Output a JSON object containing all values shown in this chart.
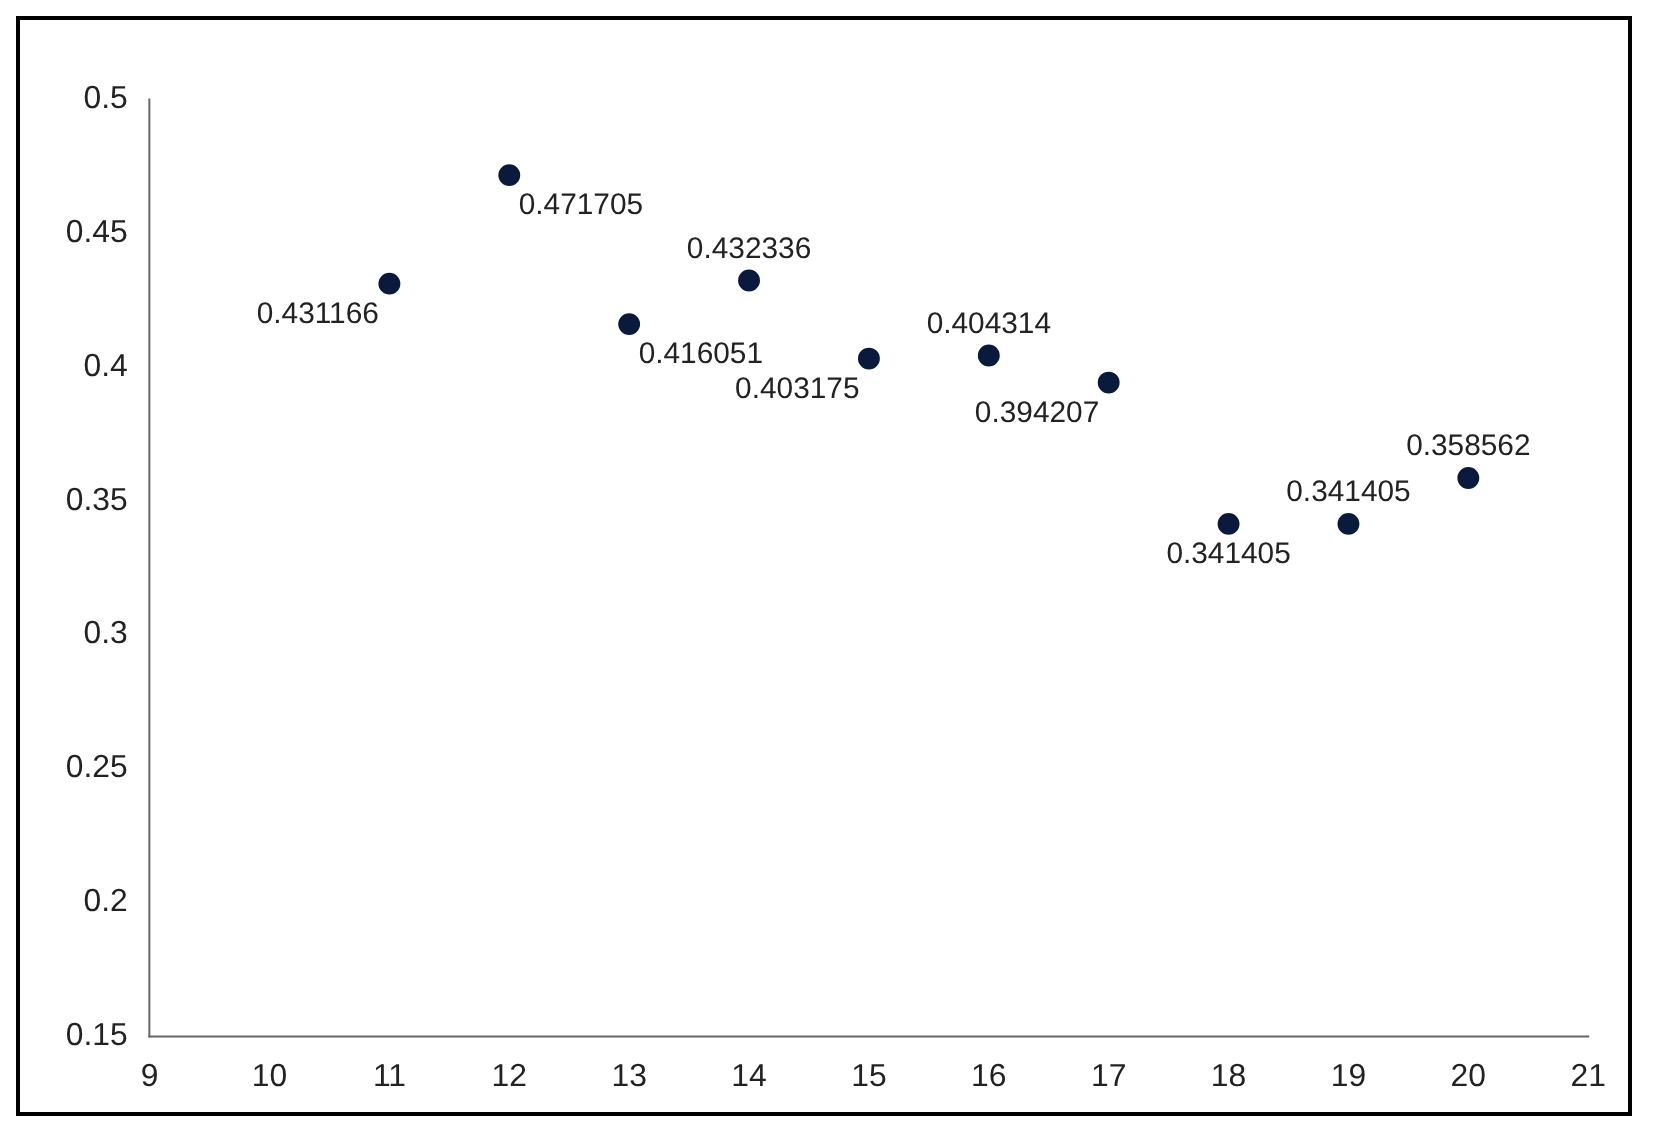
{
  "chart_data": {
    "type": "scatter",
    "x": [
      11,
      12,
      13,
      14,
      15,
      16,
      17,
      18,
      19,
      20
    ],
    "values": [
      0.431166,
      0.471705,
      0.416051,
      0.432336,
      0.403175,
      0.404314,
      0.394207,
      0.341405,
      0.341405,
      0.358562
    ],
    "color": "#0a1a3c",
    "marker": "circle",
    "data_labels": true,
    "grid": false,
    "legend": false,
    "xlim": [
      9,
      21
    ],
    "xticks": [
      9,
      10,
      11,
      12,
      13,
      14,
      15,
      16,
      17,
      18,
      19,
      20,
      21
    ],
    "ylim": [
      0.15,
      0.5
    ],
    "yticks": [
      0.15,
      0.2,
      0.25,
      0.3,
      0.35,
      0.4,
      0.45,
      0.5
    ]
  }
}
